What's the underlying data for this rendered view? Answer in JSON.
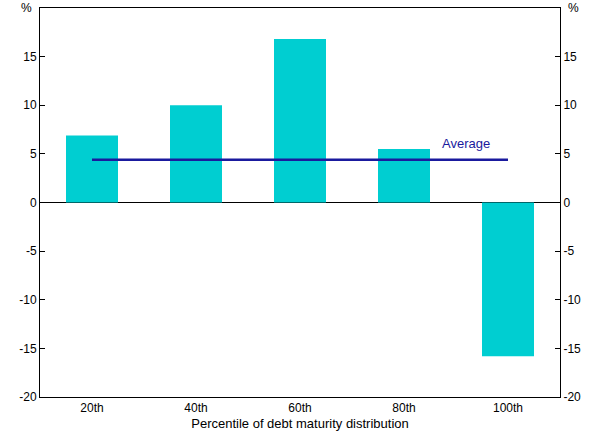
{
  "chart_data": {
    "type": "bar",
    "categories": [
      "20th",
      "40th",
      "60th",
      "80th",
      "100th"
    ],
    "values": [
      6.9,
      10,
      16.8,
      5.5,
      -15.8
    ],
    "color": "#00CED1",
    "xlabel": "Percentile of debt maturity distribution",
    "ylabel": "%",
    "ylim": [
      -20,
      20
    ],
    "yticks": [
      -20,
      -15,
      -10,
      -5,
      0,
      5,
      10,
      15
    ],
    "grid": false,
    "average": {
      "name": "Average",
      "value": 4.4,
      "color": "#1a1a9e"
    }
  }
}
